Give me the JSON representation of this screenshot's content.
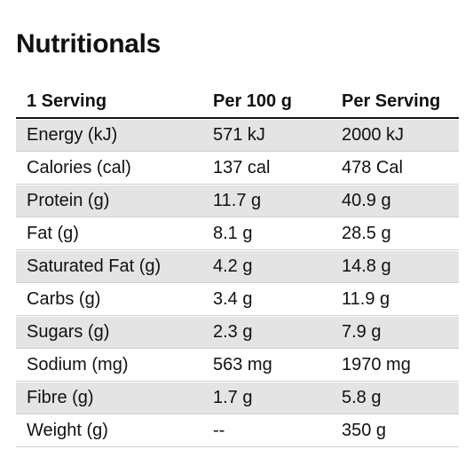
{
  "title": "Nutritionals",
  "headers": {
    "serving": "1 Serving",
    "per100": "Per 100 g",
    "perServing": "Per Serving"
  },
  "rows": [
    {
      "label": "Energy (kJ)",
      "per100": "571 kJ",
      "perServing": "2000 kJ"
    },
    {
      "label": "Calories (cal)",
      "per100": "137 cal",
      "perServing": "478 Cal"
    },
    {
      "label": "Protein (g)",
      "per100": "11.7 g",
      "perServing": "40.9 g"
    },
    {
      "label": "Fat (g)",
      "per100": "8.1 g",
      "perServing": "28.5 g"
    },
    {
      "label": "Saturated Fat (g)",
      "per100": "4.2 g",
      "perServing": "14.8 g"
    },
    {
      "label": "Carbs (g)",
      "per100": "3.4 g",
      "perServing": "11.9 g"
    },
    {
      "label": "Sugars (g)",
      "per100": "2.3 g",
      "perServing": "7.9 g"
    },
    {
      "label": "Sodium (mg)",
      "per100": "563 mg",
      "perServing": "1970 mg"
    },
    {
      "label": "Fibre (g)",
      "per100": "1.7 g",
      "perServing": "5.8 g"
    },
    {
      "label": "Weight (g)",
      "per100": "--",
      "perServing": "350 g"
    }
  ],
  "colors": {
    "shaded_row": "#e4e4e4",
    "text": "#111111"
  }
}
